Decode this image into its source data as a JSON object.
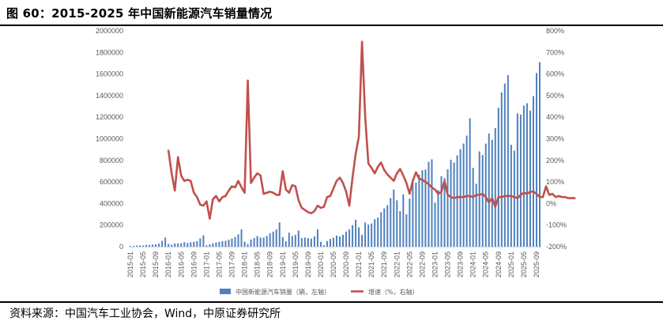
{
  "title": "图 60：2015-2025 年中国新能源汽车销量情况",
  "source": "资料来源：中国汽车工业协会，Wind，中原证券研究所",
  "colors": {
    "bar": "#4f81bd",
    "line": "#c0504d",
    "axis": "#d9d9d9",
    "tick": "#595959"
  },
  "chart_data": {
    "type": "bar+line",
    "title": "图 60：2015-2025 年中国新能源汽车销量情况",
    "left_axis": {
      "min": 0,
      "max": 2000000,
      "step": 200000,
      "tick_labels": [
        "0",
        "200000",
        "400000",
        "600000",
        "800000",
        "1000000",
        "1200000",
        "1400000",
        "1600000",
        "1800000",
        "2000000"
      ]
    },
    "right_axis": {
      "min": -200,
      "max": 800,
      "step": 100,
      "tick_labels": [
        "-200%",
        "-100%",
        "0%",
        "100%",
        "200%",
        "300%",
        "400%",
        "500%",
        "600%",
        "700%",
        "800%"
      ]
    },
    "x_tick_labels": [
      "2015-01",
      "2015-05",
      "2015-09",
      "2016-01",
      "2016-05",
      "2016-09",
      "2017-01",
      "2017-05",
      "2017-09",
      "2018-01",
      "2018-05",
      "2018-09",
      "2019-01",
      "2019-05",
      "2019-09",
      "2020-01",
      "2020-05",
      "2020-09",
      "2021-01",
      "2021-05",
      "2021-09",
      "2022-01",
      "2022-05",
      "2022-09",
      "2023-01",
      "2023-05",
      "2023-09",
      "2024-01",
      "2024-05",
      "2024-09",
      "2025-01",
      "2025-05",
      "2025-09"
    ],
    "series": [
      {
        "name": "中国新能源汽车销量（辆，左轴）",
        "type": "bar",
        "axis": "left",
        "start": "2015-01",
        "values": [
          7000,
          6500,
          11000,
          12000,
          10000,
          18000,
          16000,
          19000,
          23000,
          28000,
          55000,
          85000,
          25000,
          18000,
          30000,
          31000,
          33000,
          42000,
          35000,
          41000,
          45000,
          52000,
          78000,
          105000,
          12000,
          22000,
          32000,
          38000,
          45000,
          51000,
          55000,
          65000,
          76000,
          90000,
          115000,
          160000,
          46000,
          25000,
          67000,
          81000,
          99000,
          84000,
          85000,
          100000,
          125000,
          140000,
          160000,
          225000,
          90000,
          50000,
          130000,
          100000,
          110000,
          150000,
          80000,
          85000,
          80000,
          75000,
          95000,
          160000,
          45000,
          13000,
          53000,
          72000,
          82000,
          103000,
          95000,
          110000,
          140000,
          160000,
          200000,
          250000,
          180000,
          110000,
          225000,
          205000,
          215000,
          255000,
          270000,
          320000,
          355000,
          385000,
          450000,
          530000,
          430000,
          330000,
          485000,
          300000,
          445000,
          596000,
          593000,
          666000,
          708000,
          714000,
          787000,
          810000,
          408000,
          525000,
          653000,
          636000,
          717000,
          806000,
          780000,
          846000,
          904000,
          956000,
          1029000,
          1190000,
          730000,
          583000,
          883000,
          850000,
          955000,
          1049000,
          991000,
          1100000,
          1287000,
          1430000,
          1512000,
          1590000,
          944000,
          890000,
          1235000,
          1225000,
          1307000,
          1329000,
          1262000,
          1395000,
          1609000,
          1710000
        ]
      },
      {
        "name": "增速（%，右轴）",
        "type": "line",
        "axis": "right",
        "start": "2016-01",
        "values": [
          245,
          140,
          60,
          215,
          130,
          105,
          110,
          105,
          50,
          30,
          -5,
          -10,
          10,
          -70,
          20,
          35,
          10,
          30,
          35,
          60,
          80,
          75,
          105,
          75,
          50,
          570,
          95,
          120,
          140,
          130,
          45,
          50,
          55,
          50,
          40,
          40,
          150,
          65,
          50,
          85,
          80,
          15,
          -20,
          -30,
          -40,
          -45,
          -35,
          -10,
          -20,
          -15,
          30,
          35,
          70,
          105,
          120,
          95,
          55,
          -10,
          120,
          230,
          310,
          750,
          400,
          185,
          165,
          140,
          170,
          190,
          155,
          135,
          120,
          105,
          140,
          160,
          130,
          95,
          45,
          105,
          145,
          115,
          110,
          100,
          90,
          75,
          65,
          45,
          55,
          105,
          40,
          30,
          25,
          30,
          30,
          30,
          35,
          35,
          30,
          40,
          40,
          45,
          30,
          5,
          25,
          -15,
          30,
          30,
          35,
          35,
          35,
          30,
          25,
          40,
          50,
          45,
          55,
          55,
          45,
          30,
          30,
          80,
          40,
          45,
          30,
          35,
          30,
          30,
          25,
          25,
          25
        ]
      }
    ]
  }
}
